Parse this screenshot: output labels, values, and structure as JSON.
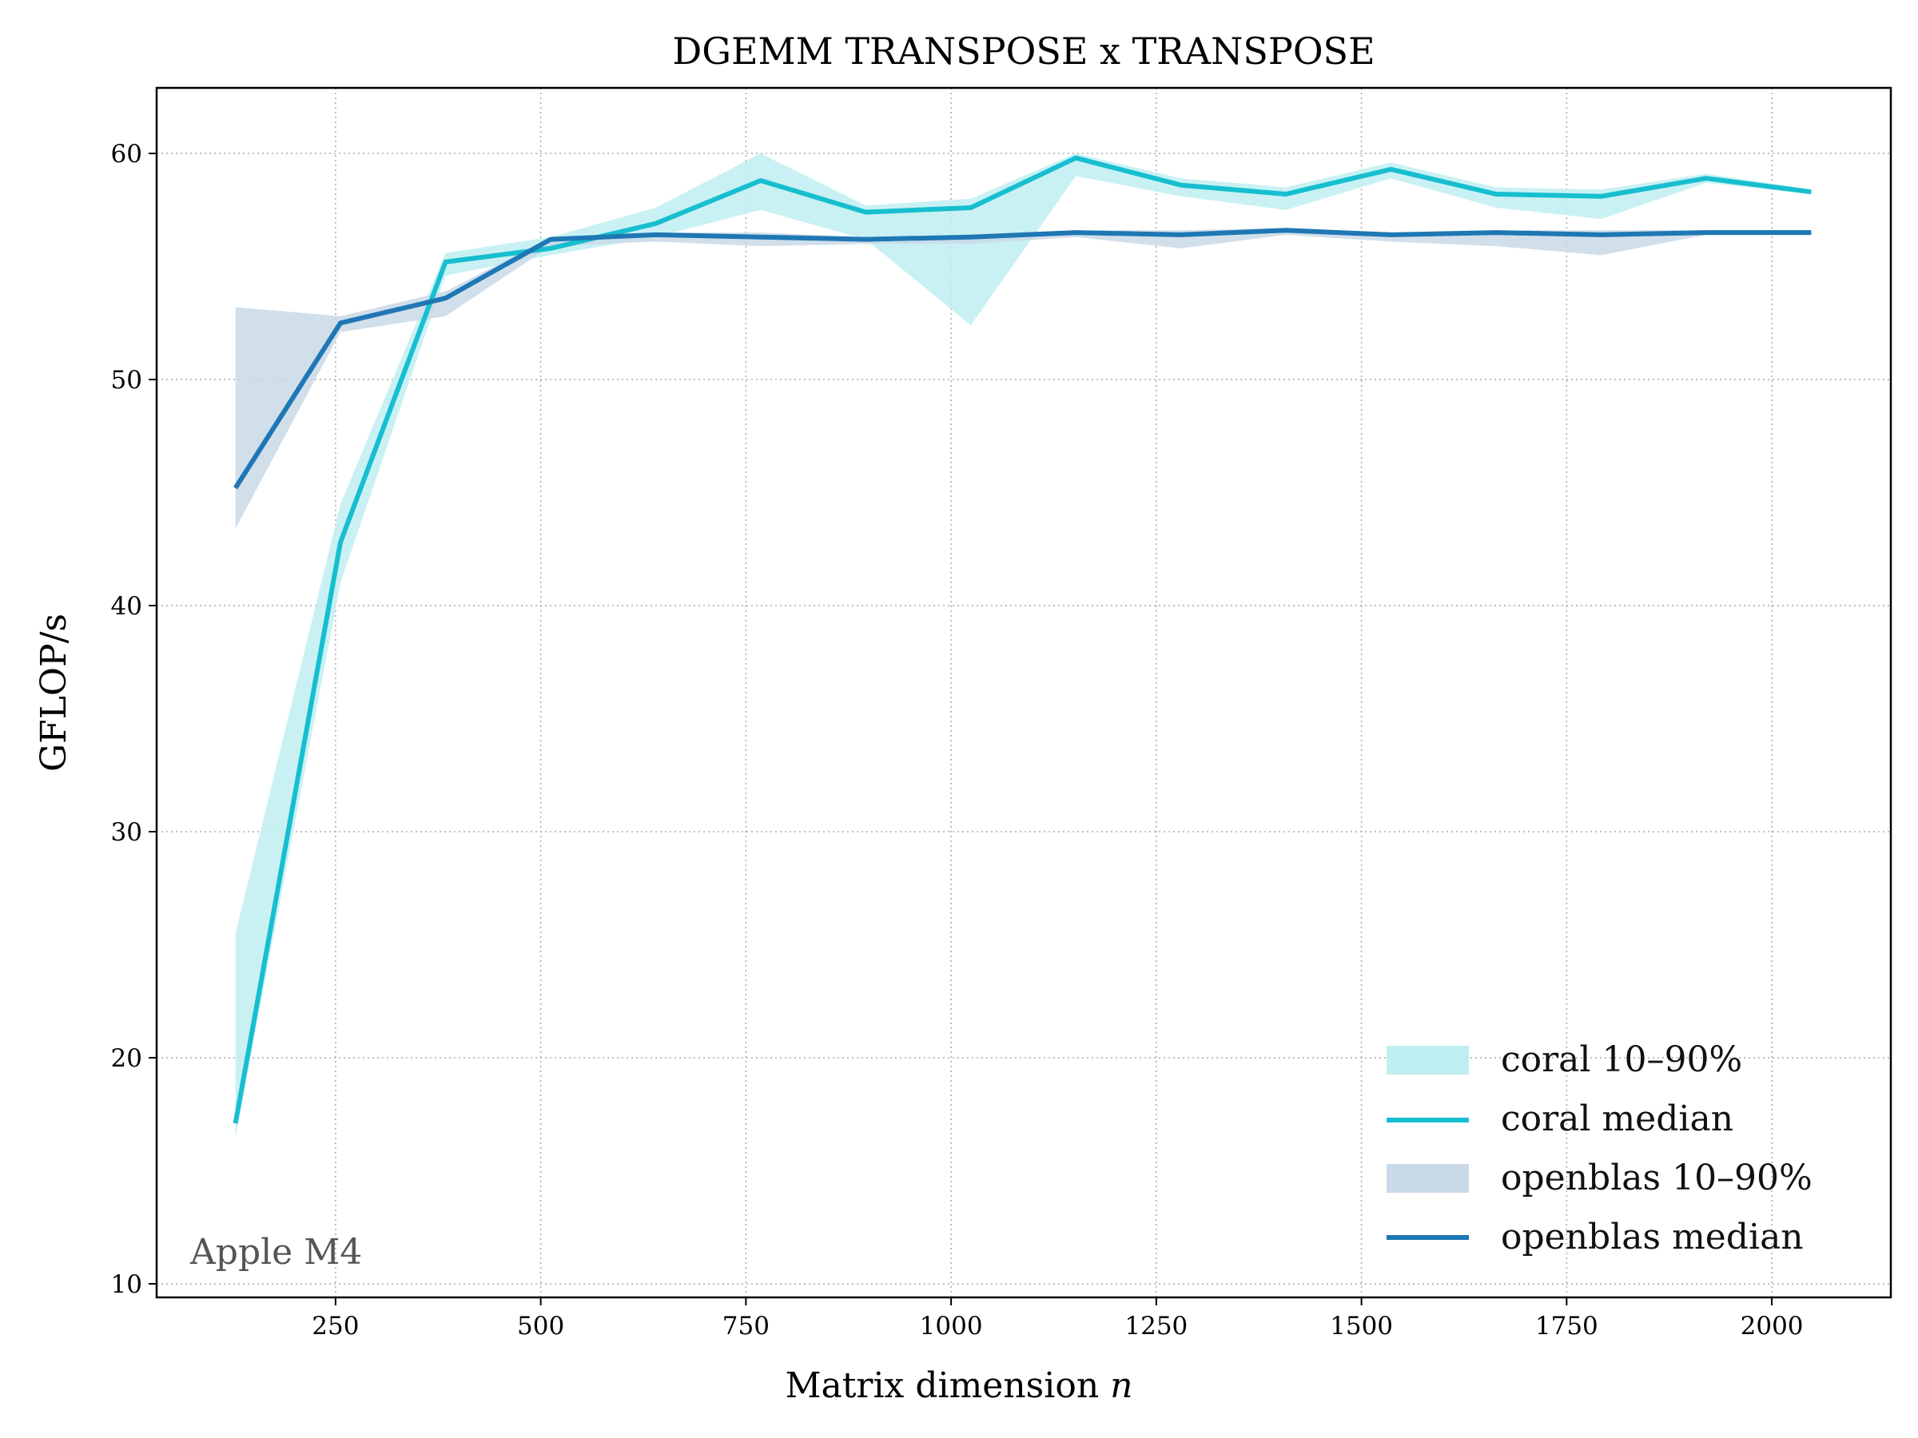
{
  "chart_data": {
    "type": "line",
    "title": "DGEMM TRANSPOSE x TRANSPOSE",
    "xlabel": "Matrix dimension",
    "xlabel_var": "n",
    "ylabel": "GFLOP/s",
    "xlim": [
      32,
      2145
    ],
    "ylim": [
      9.4,
      62.9
    ],
    "x_ticks": [
      250,
      500,
      750,
      1000,
      1250,
      1500,
      1750,
      2000
    ],
    "y_ticks": [
      10,
      20,
      30,
      40,
      50,
      60
    ],
    "grid": true,
    "legend_position": "lower-right",
    "annotation": "Apple M4",
    "x": [
      128,
      256,
      384,
      512,
      640,
      768,
      896,
      1024,
      1152,
      1280,
      1408,
      1536,
      1664,
      1792,
      1920,
      2048
    ],
    "series": [
      {
        "name": "coral median",
        "band_name": "coral 10–90%",
        "color": "#17becf",
        "band_color": "#bfeef2",
        "median": [
          17.1,
          42.8,
          55.2,
          55.8,
          56.9,
          58.8,
          57.4,
          57.6,
          59.8,
          58.6,
          58.2,
          59.3,
          58.2,
          58.1,
          58.9,
          58.3
        ],
        "p10": [
          16.5,
          41.0,
          54.6,
          55.5,
          56.3,
          57.5,
          56.2,
          52.4,
          59.0,
          58.1,
          57.5,
          58.9,
          57.6,
          57.1,
          58.7,
          58.2
        ],
        "p90": [
          25.5,
          44.5,
          55.6,
          56.3,
          57.6,
          60.0,
          57.7,
          58.0,
          60.0,
          58.9,
          58.5,
          59.6,
          58.5,
          58.4,
          59.1,
          58.4
        ]
      },
      {
        "name": "openblas median",
        "band_name": "openblas 10–90%",
        "color": "#1f77b4",
        "band_color": "#c9d9e8",
        "median": [
          45.2,
          52.5,
          53.6,
          56.2,
          56.4,
          56.3,
          56.2,
          56.3,
          56.5,
          56.4,
          56.6,
          56.4,
          56.5,
          56.4,
          56.5,
          56.5
        ],
        "p10": [
          43.4,
          52.1,
          52.8,
          55.9,
          56.1,
          55.9,
          56.0,
          56.0,
          56.3,
          55.8,
          56.4,
          56.1,
          55.9,
          55.5,
          56.4,
          56.5
        ],
        "p90": [
          53.2,
          52.8,
          53.9,
          56.3,
          56.5,
          56.5,
          56.3,
          56.4,
          56.6,
          56.6,
          56.7,
          56.5,
          56.6,
          56.6,
          56.6,
          56.6
        ]
      }
    ]
  }
}
